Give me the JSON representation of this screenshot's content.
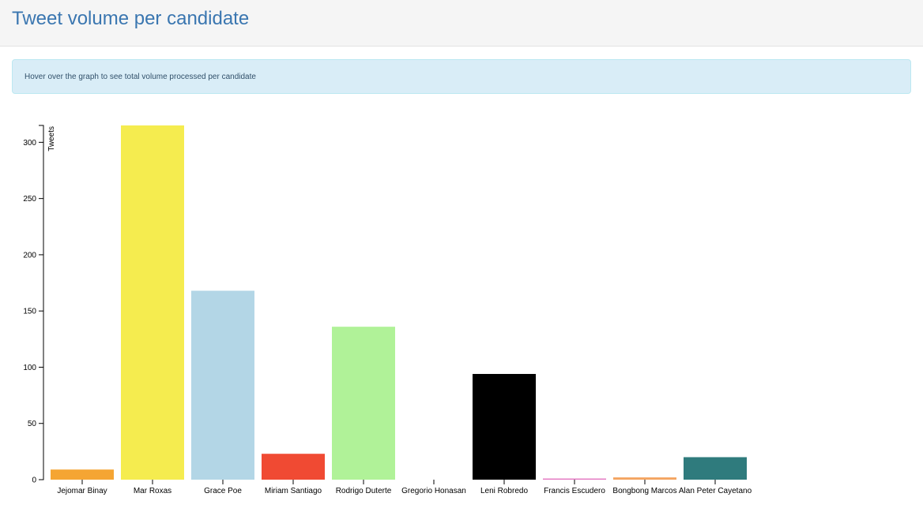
{
  "header": {
    "title": "Tweet volume per candidate"
  },
  "info": {
    "text": "Hover over the graph to see total volume processed per candidate"
  },
  "chart_data": {
    "type": "bar",
    "ylabel": "Tweets",
    "xlabel": "",
    "ylim": [
      0,
      315
    ],
    "yticks": [
      0,
      50,
      100,
      150,
      200,
      250,
      300
    ],
    "categories": [
      "Jejomar Binay",
      "Mar Roxas",
      "Grace Poe",
      "Miriam Santiago",
      "Rodrigo Duterte",
      "Gregorio Honasan",
      "Leni Robredo",
      "Francis Escudero",
      "Bongbong Marcos",
      "Alan Peter Cayetano"
    ],
    "values": [
      9,
      315,
      168,
      23,
      136,
      0,
      94,
      1,
      2,
      20
    ],
    "colors": [
      "#f5a533",
      "#f5ec4f",
      "#b3d6e6",
      "#f04a33",
      "#b0f298",
      "#cccccc",
      "#000000",
      "#e377c2",
      "#f4a460",
      "#2f7b7d"
    ],
    "grid": false,
    "legend": "none"
  }
}
